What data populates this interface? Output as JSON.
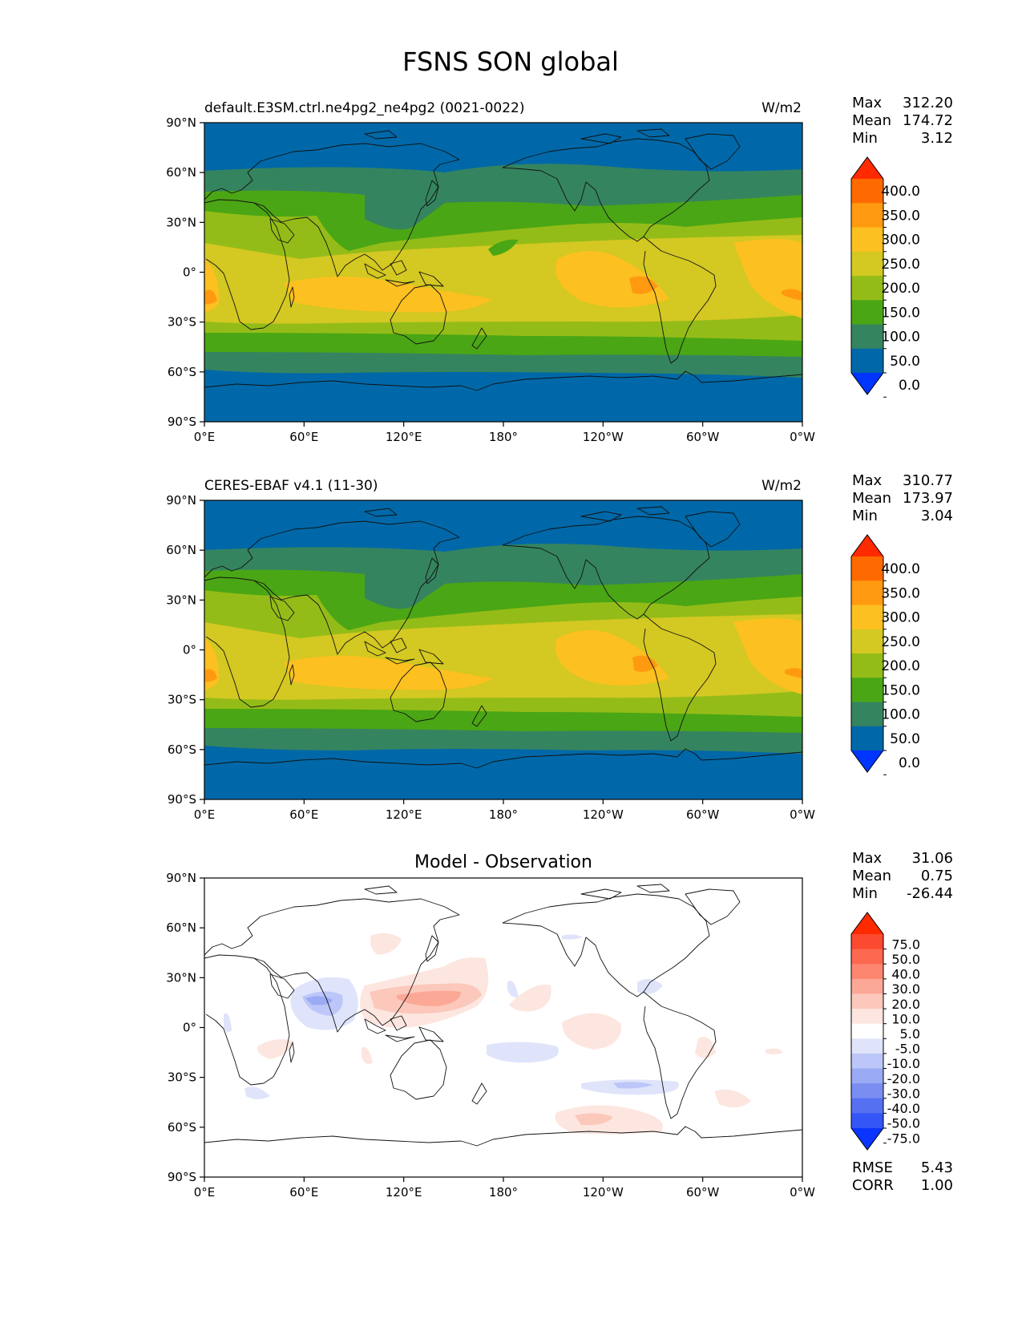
{
  "figure": {
    "title": "FSNS SON global"
  },
  "lat_ticks": [
    "90°N",
    "60°N",
    "30°N",
    "0°",
    "30°S",
    "60°S",
    "90°S"
  ],
  "lon_ticks": [
    "0°E",
    "60°E",
    "120°E",
    "180°",
    "120°W",
    "60°W",
    "0°W"
  ],
  "panels": [
    {
      "id": "model",
      "left_title": "default.E3SM.ctrl.ne4pg2_ne4pg2 (0021-0022)",
      "center_title": "",
      "units": "W/m2",
      "stats": [
        {
          "label": "Max",
          "value": "312.20"
        },
        {
          "label": "Mean",
          "value": "174.72"
        },
        {
          "label": "Min",
          "value": "3.12"
        }
      ],
      "colorbar": {
        "labels": [
          "400.0",
          "350.0",
          "300.0",
          "250.0",
          "200.0",
          "150.0",
          "100.0",
          "50.0",
          "0.0"
        ],
        "colors": [
          "#ff2a00",
          "#ff6a00",
          "#ff9a10",
          "#fcc020",
          "#d4c822",
          "#94bc18",
          "#4aa614",
          "#358460",
          "#0068a8",
          "#0034ff"
        ]
      }
    },
    {
      "id": "obs",
      "left_title": "CERES-EBAF v4.1 (11-30)",
      "center_title": "",
      "units": "W/m2",
      "stats": [
        {
          "label": "Max",
          "value": "310.77"
        },
        {
          "label": "Mean",
          "value": "173.97"
        },
        {
          "label": "Min",
          "value": "3.04"
        }
      ],
      "colorbar": {
        "labels": [
          "400.0",
          "350.0",
          "300.0",
          "250.0",
          "200.0",
          "150.0",
          "100.0",
          "50.0",
          "0.0"
        ],
        "colors": [
          "#ff2a00",
          "#ff6a00",
          "#ff9a10",
          "#fcc020",
          "#d4c822",
          "#94bc18",
          "#4aa614",
          "#358460",
          "#0068a8",
          "#0034ff"
        ]
      }
    },
    {
      "id": "diff",
      "left_title": "",
      "center_title": "Model - Observation",
      "units": "",
      "stats": [
        {
          "label": "Max",
          "value": "31.06"
        },
        {
          "label": "Mean",
          "value": "0.75"
        },
        {
          "label": "Min",
          "value": "-26.44"
        }
      ],
      "colorbar": {
        "labels": [
          "75.0",
          "50.0",
          "40.0",
          "30.0",
          "20.0",
          "10.0",
          "5.0",
          "-5.0",
          "-10.0",
          "-20.0",
          "-30.0",
          "-40.0",
          "-50.0",
          "-75.0"
        ],
        "colors": [
          "#ff2a00",
          "#fc4a30",
          "#fc6850",
          "#fc8670",
          "#fca896",
          "#fcc8bc",
          "#fde6e0",
          "#ffffff",
          "#dfe4fb",
          "#bcc6f8",
          "#9aaaf4",
          "#7a8ef2",
          "#5670f2",
          "#3456f6",
          "#0a34ff"
        ]
      },
      "metrics": [
        {
          "label": "RMSE",
          "value": "5.43"
        },
        {
          "label": "CORR",
          "value": "1.00"
        }
      ]
    }
  ]
}
